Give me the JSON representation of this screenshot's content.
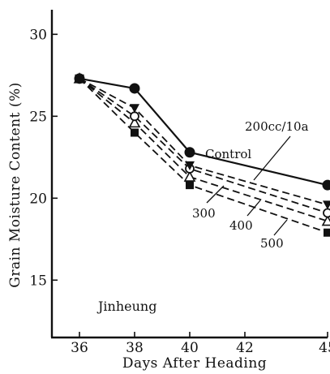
{
  "chart_data": {
    "type": "line",
    "title": "",
    "xlabel": "Days  After  Heading",
    "ylabel": "Grain  Moisture  Content  (%)",
    "xlim": [
      35,
      45
    ],
    "ylim": [
      11.5,
      31.5
    ],
    "x_ticks": [
      36,
      38,
      40,
      42,
      45
    ],
    "x_tick_labels": [
      "36",
      "38",
      "40",
      "42",
      "45"
    ],
    "y_ticks": [
      15,
      20,
      25,
      30
    ],
    "y_tick_labels": [
      "15",
      "20",
      "25",
      "30"
    ],
    "grid": false,
    "legend": "none",
    "annotation": "Jinheung",
    "x": [
      36,
      38,
      40,
      45
    ],
    "series": [
      {
        "name": "Control",
        "marker": "filled-circle",
        "dash": "solid",
        "values": [
          27.3,
          26.7,
          22.8,
          20.8
        ]
      },
      {
        "name": "200cc/10a",
        "marker": "filled-triangle-down",
        "dash": "dashed",
        "values": [
          27.3,
          25.5,
          22.0,
          19.6
        ]
      },
      {
        "name": "300",
        "marker": "open-circle",
        "dash": "dashed",
        "values": [
          27.3,
          25.0,
          21.8,
          19.1
        ]
      },
      {
        "name": "400",
        "marker": "open-triangle",
        "dash": "dashed",
        "values": [
          27.3,
          24.6,
          21.3,
          18.6
        ]
      },
      {
        "name": "500",
        "marker": "filled-square",
        "dash": "dashed",
        "values": [
          27.3,
          24.0,
          20.8,
          17.9
        ]
      }
    ]
  }
}
